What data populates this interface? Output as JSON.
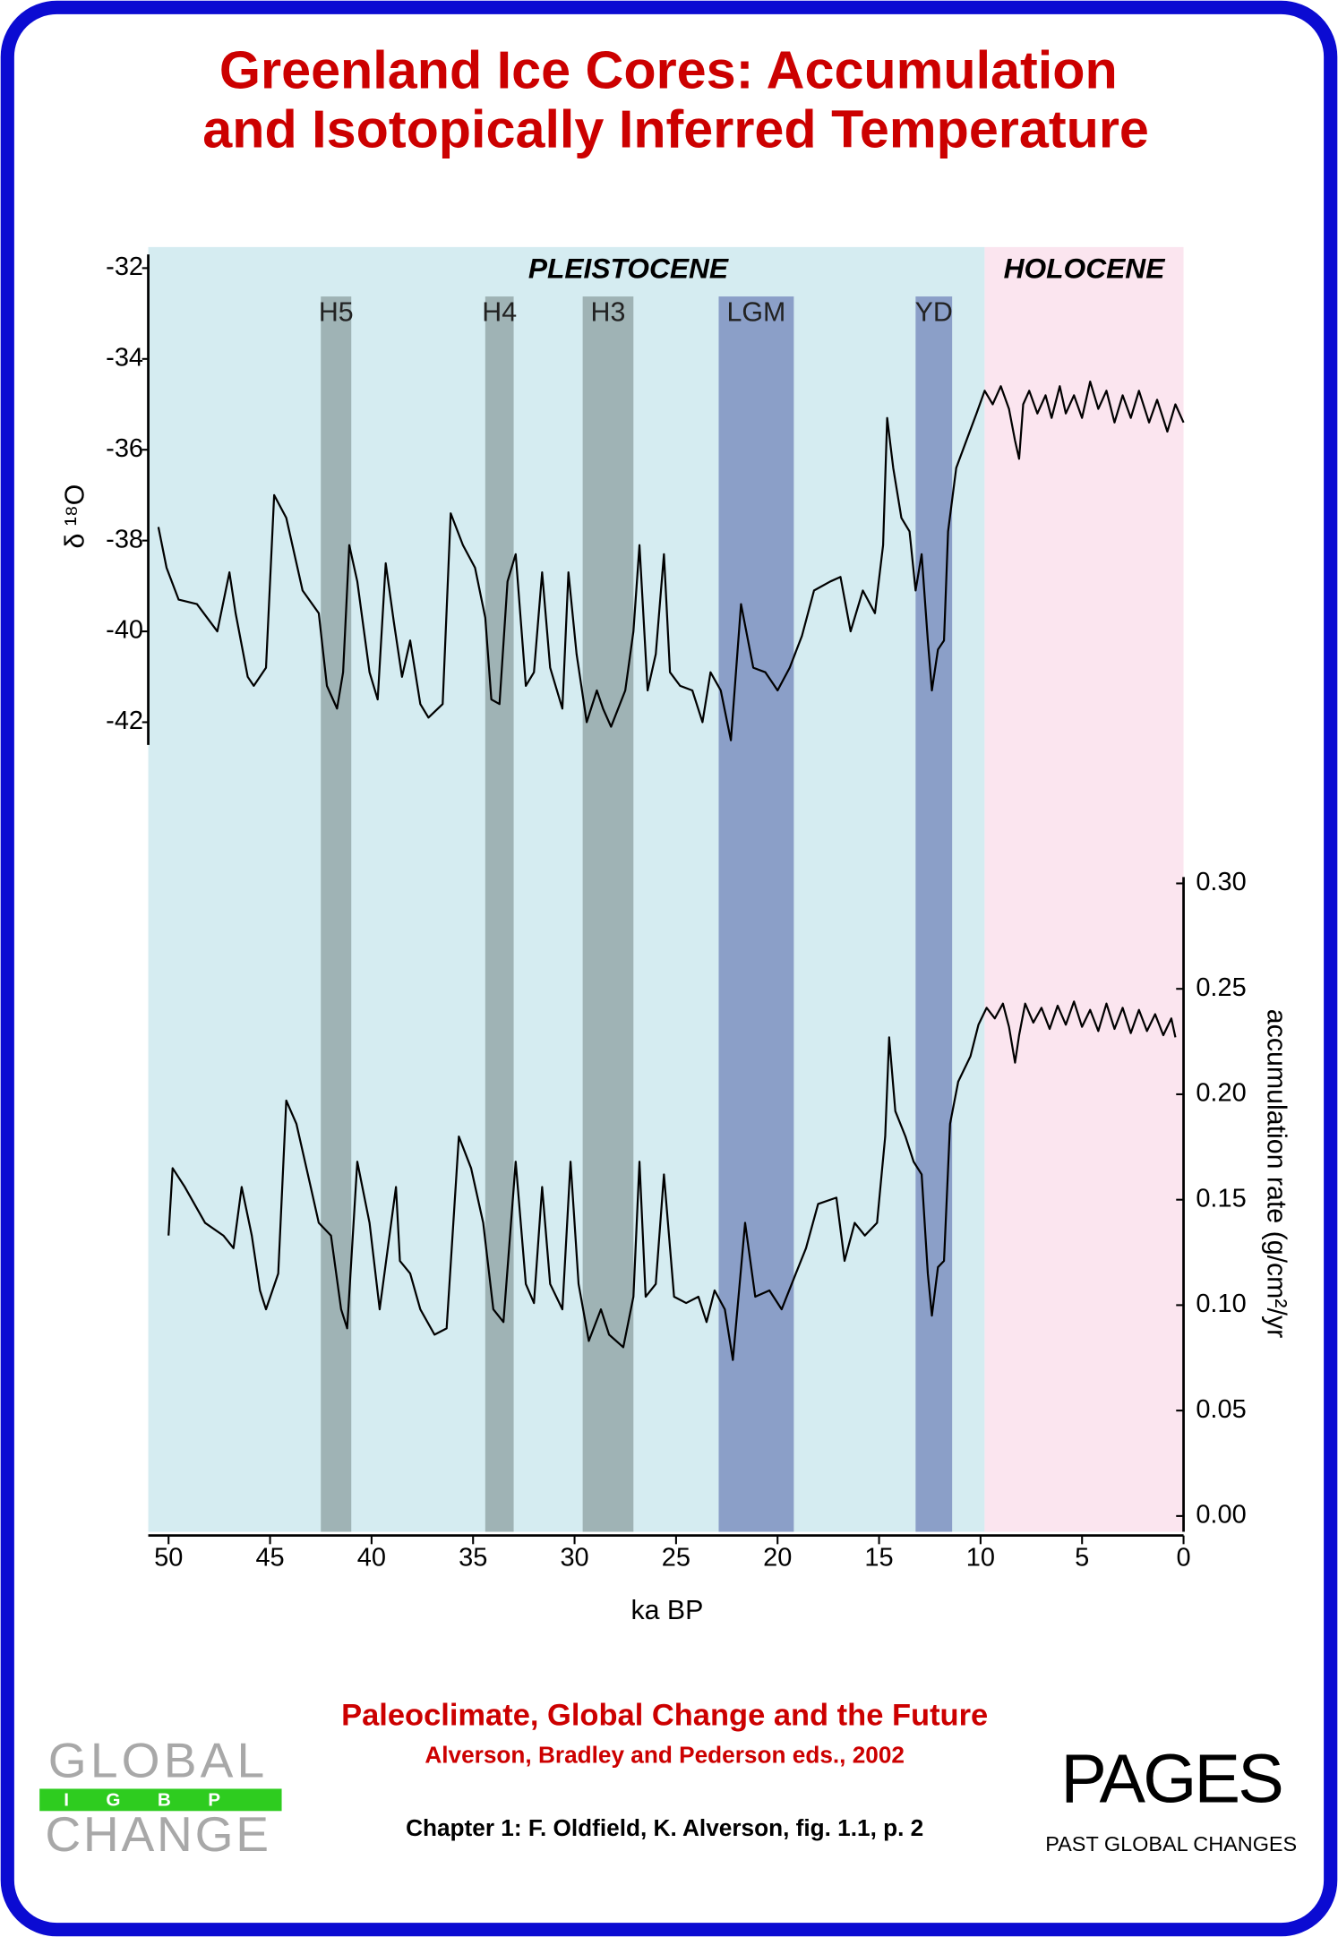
{
  "chart_data": {
    "type": "line",
    "title": [
      "Greenland Ice Cores: Accumulation",
      "and Isotopically Inferred Temperature"
    ],
    "x_label": "ka BP",
    "y_label": "δ ¹⁸O",
    "y2_label": "accumulation rate (g/cm²/yr",
    "xlim": [
      51,
      0
    ],
    "xticks": [
      50,
      45,
      40,
      35,
      30,
      25,
      20,
      15,
      10,
      5,
      0
    ],
    "ylim": [
      -42.5,
      -31.7
    ],
    "yticks": [
      -42,
      -40,
      -38,
      -36,
      -34,
      -32
    ],
    "y2lim": [
      -0.0075,
      0.303
    ],
    "y2ticks": [
      {
        "value": 0,
        "label": "0.00"
      },
      {
        "value": 0.05,
        "label": "0.05"
      },
      {
        "value": 0.1,
        "label": "0.10"
      },
      {
        "value": 0.15,
        "label": "0.15"
      },
      {
        "value": 0.2,
        "label": "0.20"
      },
      {
        "value": 0.25,
        "label": "0.25"
      },
      {
        "value": 0.3,
        "label": "0.30"
      }
    ],
    "periods": [
      {
        "label": "PLEISTOCENE",
        "range": [
          51,
          9.8
        ],
        "color": "#d5ecf1"
      },
      {
        "label": "HOLOCENE",
        "range": [
          9.8,
          0
        ],
        "color": "#fbe5ef"
      }
    ],
    "bands": [
      {
        "label": "H5",
        "range": [
          42.5,
          41.0
        ],
        "color": "#9fb3b5"
      },
      {
        "label": "H4",
        "range": [
          34.4,
          33.0
        ],
        "color": "#9fb3b5"
      },
      {
        "label": "H3",
        "range": [
          29.6,
          27.1
        ],
        "color": "#9fb3b5"
      },
      {
        "label": "LGM",
        "range": [
          22.9,
          19.2
        ],
        "color": "#8b9fc8"
      },
      {
        "label": "YD",
        "range": [
          13.2,
          11.4
        ],
        "color": "#8b9fc8"
      }
    ],
    "series": [
      {
        "color": "#000000",
        "axis": "y",
        "x": [
          50.5,
          50.1,
          49.5,
          48.6,
          47.6,
          47.0,
          46.7,
          46.1,
          45.8,
          45.2,
          44.8,
          44.2,
          43.4,
          42.6,
          42.2,
          41.7,
          41.4,
          41.1,
          40.7,
          40.1,
          39.7,
          39.3,
          38.9,
          38.5,
          38.1,
          37.6,
          37.2,
          36.5,
          36.1,
          35.5,
          34.9,
          34.4,
          34.1,
          33.7,
          33.3,
          32.9,
          32.4,
          32.0,
          31.6,
          31.2,
          30.6,
          30.3,
          29.9,
          29.4,
          28.9,
          28.6,
          28.2,
          27.5,
          27.1,
          26.8,
          26.4,
          26.0,
          25.6,
          25.3,
          24.8,
          24.2,
          23.7,
          23.3,
          22.8,
          22.3,
          21.8,
          21.2,
          20.6,
          20.0,
          19.4,
          18.8,
          18.2,
          17.4,
          16.9,
          16.4,
          15.8,
          15.2,
          14.8,
          14.6,
          14.3,
          13.9,
          13.5,
          13.2,
          12.9,
          12.6,
          12.4,
          12.1,
          11.8,
          11.6,
          11.2,
          10.7,
          10.2,
          9.8,
          9.4,
          9.0,
          8.6,
          8.3,
          8.1,
          7.9,
          7.6,
          7.2,
          6.8,
          6.5,
          6.1,
          5.8,
          5.4,
          5.0,
          4.6,
          4.2,
          3.8,
          3.4,
          3.0,
          2.6,
          2.2,
          1.7,
          1.3,
          0.8,
          0.4,
          0.0
        ],
        "values": [
          -37.7,
          -38.6,
          -39.3,
          -39.4,
          -40.0,
          -38.7,
          -39.6,
          -41.0,
          -41.2,
          -40.8,
          -37.0,
          -37.5,
          -39.1,
          -39.6,
          -41.2,
          -41.7,
          -40.9,
          -38.1,
          -38.9,
          -40.9,
          -41.5,
          -38.5,
          -39.8,
          -41.0,
          -40.2,
          -41.6,
          -41.9,
          -41.6,
          -37.4,
          -38.1,
          -38.6,
          -39.7,
          -41.5,
          -41.6,
          -38.9,
          -38.3,
          -41.2,
          -40.9,
          -38.7,
          -40.8,
          -41.7,
          -38.7,
          -40.5,
          -42.0,
          -41.3,
          -41.7,
          -42.1,
          -41.3,
          -40.0,
          -38.1,
          -41.3,
          -40.5,
          -38.3,
          -40.9,
          -41.2,
          -41.3,
          -42.0,
          -40.9,
          -41.3,
          -42.4,
          -39.4,
          -40.8,
          -40.9,
          -41.3,
          -40.8,
          -40.1,
          -39.1,
          -38.9,
          -38.8,
          -40.0,
          -39.1,
          -39.6,
          -38.1,
          -35.3,
          -36.4,
          -37.5,
          -37.8,
          -39.1,
          -38.3,
          -40.2,
          -41.3,
          -40.4,
          -40.2,
          -37.8,
          -36.4,
          -35.8,
          -35.2,
          -34.7,
          -35.0,
          -34.6,
          -35.1,
          -35.8,
          -36.2,
          -35.0,
          -34.7,
          -35.2,
          -34.8,
          -35.3,
          -34.6,
          -35.2,
          -34.8,
          -35.3,
          -34.5,
          -35.1,
          -34.7,
          -35.4,
          -34.8,
          -35.3,
          -34.7,
          -35.4,
          -34.9,
          -35.6,
          -35.0,
          -35.4
        ]
      },
      {
        "color": "#000000",
        "axis": "y2",
        "x": [
          50.0,
          49.8,
          49.2,
          48.2,
          47.3,
          46.8,
          46.4,
          45.9,
          45.5,
          45.2,
          44.6,
          44.2,
          43.7,
          43.0,
          42.6,
          42.0,
          41.5,
          41.2,
          40.7,
          40.1,
          39.6,
          38.8,
          38.6,
          38.1,
          37.6,
          36.9,
          36.3,
          35.7,
          35.1,
          34.5,
          34.0,
          33.5,
          32.9,
          32.4,
          32.0,
          31.6,
          31.2,
          30.6,
          30.2,
          29.8,
          29.3,
          28.7,
          28.3,
          27.6,
          27.1,
          26.8,
          26.5,
          26.0,
          25.6,
          25.1,
          24.5,
          23.9,
          23.5,
          23.1,
          22.6,
          22.2,
          21.6,
          21.1,
          20.4,
          19.8,
          19.1,
          18.6,
          18.0,
          17.1,
          16.7,
          16.2,
          15.7,
          15.1,
          14.7,
          14.5,
          14.2,
          13.7,
          13.3,
          12.9,
          12.6,
          12.4,
          12.1,
          11.8,
          11.5,
          11.1,
          10.5,
          10.1,
          9.7,
          9.3,
          8.9,
          8.6,
          8.3,
          8.1,
          7.8,
          7.4,
          7.0,
          6.6,
          6.2,
          5.8,
          5.4,
          5.0,
          4.6,
          4.2,
          3.8,
          3.4,
          3.0,
          2.6,
          2.2,
          1.8,
          1.4,
          1.0,
          0.6,
          0.4
        ],
        "values": [
          0.133,
          0.165,
          0.156,
          0.139,
          0.133,
          0.127,
          0.156,
          0.133,
          0.107,
          0.098,
          0.115,
          0.197,
          0.186,
          0.156,
          0.139,
          0.133,
          0.098,
          0.089,
          0.168,
          0.139,
          0.098,
          0.156,
          0.121,
          0.115,
          0.098,
          0.086,
          0.089,
          0.18,
          0.165,
          0.139,
          0.098,
          0.092,
          0.168,
          0.11,
          0.101,
          0.156,
          0.11,
          0.098,
          0.168,
          0.11,
          0.083,
          0.098,
          0.086,
          0.08,
          0.104,
          0.168,
          0.104,
          0.11,
          0.162,
          0.104,
          0.101,
          0.104,
          0.092,
          0.107,
          0.098,
          0.074,
          0.139,
          0.104,
          0.107,
          0.098,
          0.115,
          0.127,
          0.148,
          0.151,
          0.121,
          0.139,
          0.133,
          0.139,
          0.18,
          0.227,
          0.192,
          0.18,
          0.168,
          0.162,
          0.115,
          0.095,
          0.118,
          0.121,
          0.186,
          0.206,
          0.218,
          0.233,
          0.241,
          0.236,
          0.243,
          0.232,
          0.215,
          0.228,
          0.243,
          0.234,
          0.241,
          0.231,
          0.242,
          0.233,
          0.244,
          0.232,
          0.24,
          0.23,
          0.243,
          0.231,
          0.241,
          0.229,
          0.24,
          0.23,
          0.238,
          0.228,
          0.236,
          0.227
        ]
      }
    ]
  },
  "footer": {
    "book": "Paleoclimate, Global Change and the Future",
    "editors": "Alverson, Bradley and Pederson eds., 2002",
    "chapter": "Chapter 1: F. Oldfield, K. Alverson, fig. 1.1, p. 2"
  },
  "logos": {
    "igbp": [
      "GLOBAL",
      "IGBP",
      "CHANGE"
    ],
    "pages": [
      "PAGES",
      "PAST GLOBAL CHANGES"
    ]
  }
}
